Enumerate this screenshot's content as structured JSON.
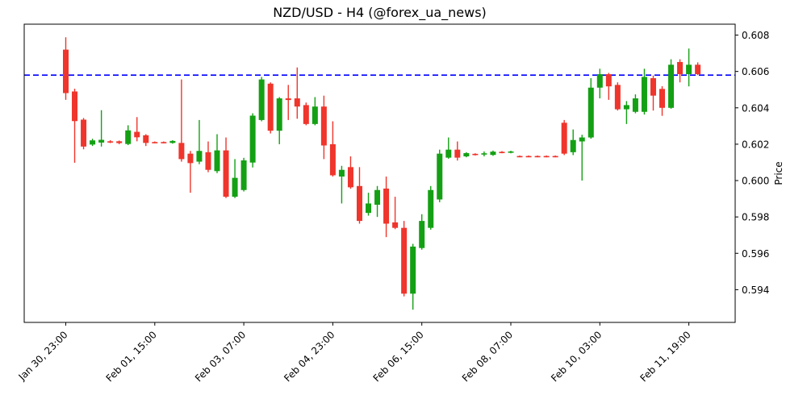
{
  "chart_data": {
    "type": "candlestick",
    "title": "NZD/USD - H4 (@forex_ua_news)",
    "symbol": "NZD/USD",
    "timeframe": "H4",
    "source": "@forex_ua_news",
    "ylabel": "Price",
    "grid": false,
    "legend": null,
    "ylim": [
      0.5922,
      0.6086
    ],
    "y_tick_labels": [
      "0.608",
      "0.606",
      "0.604",
      "0.602",
      "0.600",
      "0.598",
      "0.596",
      "0.594"
    ],
    "y_tick_values": [
      0.608,
      0.606,
      0.604,
      0.602,
      0.6,
      0.598,
      0.596,
      0.594
    ],
    "x_ticks": [
      {
        "index": 0,
        "label": "Jan 30, 23:00"
      },
      {
        "index": 10,
        "label": "Feb 01, 15:00"
      },
      {
        "index": 20,
        "label": "Feb 03, 07:00"
      },
      {
        "index": 30,
        "label": "Feb 04, 23:00"
      },
      {
        "index": 40,
        "label": "Feb 06, 15:00"
      },
      {
        "index": 50,
        "label": "Feb 08, 07:00"
      },
      {
        "index": 60,
        "label": "Feb 10, 03:00"
      },
      {
        "index": 70,
        "label": "Feb 11, 19:00"
      }
    ],
    "hline": {
      "value": 0.6058,
      "color": "#0000ff",
      "style": "dashed"
    },
    "colors": {
      "up": "#14a014",
      "down": "#ef352c",
      "axis": "#000000",
      "background": "#ffffff"
    },
    "n_candles": 72,
    "candles_ohlc": [
      [
        0.6072,
        0.60788,
        0.60444,
        0.60481
      ],
      [
        0.6049,
        0.60505,
        0.60098,
        0.60327
      ],
      [
        0.60335,
        0.60344,
        0.60172,
        0.60187
      ],
      [
        0.60198,
        0.6023,
        0.6019,
        0.60221
      ],
      [
        0.60209,
        0.60387,
        0.60187,
        0.60224
      ],
      [
        0.60216,
        0.60222,
        0.60206,
        0.6021
      ],
      [
        0.60216,
        0.6022,
        0.602,
        0.60206
      ],
      [
        0.60201,
        0.60304,
        0.60195,
        0.60276
      ],
      [
        0.60268,
        0.60349,
        0.60216,
        0.60238
      ],
      [
        0.60249,
        0.60255,
        0.6019,
        0.60207
      ],
      [
        0.60212,
        0.60215,
        0.60205,
        0.60208
      ],
      [
        0.60212,
        0.60215,
        0.60205,
        0.60208
      ],
      [
        0.60207,
        0.60222,
        0.60203,
        0.60218
      ],
      [
        0.60207,
        0.60556,
        0.60104,
        0.60118
      ],
      [
        0.60148,
        0.60163,
        0.59933,
        0.60096
      ],
      [
        0.60104,
        0.60333,
        0.6009,
        0.60163
      ],
      [
        0.60156,
        0.60215,
        0.60046,
        0.60059
      ],
      [
        0.60052,
        0.60255,
        0.60041,
        0.60166
      ],
      [
        0.60166,
        0.60237,
        0.59904,
        0.59911
      ],
      [
        0.59911,
        0.60118,
        0.59904,
        0.60015
      ],
      [
        0.59948,
        0.60125,
        0.5994,
        0.60111
      ],
      [
        0.60099,
        0.6037,
        0.60072,
        0.60357
      ],
      [
        0.60333,
        0.6057,
        0.60326,
        0.60556
      ],
      [
        0.60533,
        0.6054,
        0.60259,
        0.60274
      ],
      [
        0.60274,
        0.60459,
        0.602,
        0.60452
      ],
      [
        0.60452,
        0.60526,
        0.60333,
        0.60443
      ],
      [
        0.60452,
        0.60622,
        0.6034,
        0.60407
      ],
      [
        0.60415,
        0.60429,
        0.60304,
        0.60311
      ],
      [
        0.60311,
        0.60459,
        0.60304,
        0.60407
      ],
      [
        0.60407,
        0.60467,
        0.60118,
        0.60193
      ],
      [
        0.602,
        0.60326,
        0.60022,
        0.60029
      ],
      [
        0.60022,
        0.60081,
        0.59874,
        0.60059
      ],
      [
        0.60074,
        0.60133,
        0.59955,
        0.59963
      ],
      [
        0.5997,
        0.60074,
        0.59763,
        0.59778
      ],
      [
        0.59822,
        0.59933,
        0.59807,
        0.59874
      ],
      [
        0.59867,
        0.5997,
        0.598,
        0.59948
      ],
      [
        0.59956,
        0.60022,
        0.59689,
        0.59763
      ],
      [
        0.5977,
        0.59911,
        0.59733,
        0.5974
      ],
      [
        0.5974,
        0.59778,
        0.59363,
        0.59378
      ],
      [
        0.59378,
        0.59652,
        0.5929,
        0.59637
      ],
      [
        0.59629,
        0.59815,
        0.5962,
        0.59778
      ],
      [
        0.5974,
        0.5997,
        0.5973,
        0.59948
      ],
      [
        0.59896,
        0.6017,
        0.59881,
        0.60148
      ],
      [
        0.60126,
        0.60237,
        0.6012,
        0.6017
      ],
      [
        0.6017,
        0.60215,
        0.6011,
        0.60126
      ],
      [
        0.60133,
        0.60156,
        0.60128,
        0.60151
      ],
      [
        0.60147,
        0.6015,
        0.60138,
        0.60142
      ],
      [
        0.60143,
        0.6016,
        0.60133,
        0.6015
      ],
      [
        0.60141,
        0.60165,
        0.60136,
        0.60159
      ],
      [
        0.60158,
        0.60162,
        0.6015,
        0.60154
      ],
      [
        0.60154,
        0.60164,
        0.6015,
        0.6016
      ],
      [
        0.60135,
        0.60138,
        0.60128,
        0.60133
      ],
      [
        0.60135,
        0.60138,
        0.60128,
        0.60133
      ],
      [
        0.60135,
        0.60138,
        0.60128,
        0.60133
      ],
      [
        0.60135,
        0.60138,
        0.60128,
        0.60133
      ],
      [
        0.60135,
        0.60138,
        0.60128,
        0.60133
      ],
      [
        0.60318,
        0.60333,
        0.6014,
        0.60148
      ],
      [
        0.60156,
        0.60281,
        0.6014,
        0.60223
      ],
      [
        0.60215,
        0.60252,
        0.6,
        0.60237
      ],
      [
        0.60237,
        0.60563,
        0.6023,
        0.60511
      ],
      [
        0.60511,
        0.60615,
        0.60452,
        0.60585
      ],
      [
        0.60585,
        0.60592,
        0.60444,
        0.60518
      ],
      [
        0.60526,
        0.6054,
        0.60385,
        0.60392
      ],
      [
        0.60392,
        0.60437,
        0.60311,
        0.60415
      ],
      [
        0.60378,
        0.60474,
        0.6037,
        0.60452
      ],
      [
        0.60378,
        0.60615,
        0.60363,
        0.6057
      ],
      [
        0.60563,
        0.60578,
        0.60385,
        0.60467
      ],
      [
        0.60504,
        0.60519,
        0.60356,
        0.604
      ],
      [
        0.604,
        0.60667,
        0.60395,
        0.60637
      ],
      [
        0.60652,
        0.60667,
        0.6054,
        0.60585
      ],
      [
        0.60585,
        0.60726,
        0.60518,
        0.60637
      ],
      [
        0.60637,
        0.6065,
        0.6058,
        0.60585
      ]
    ]
  }
}
